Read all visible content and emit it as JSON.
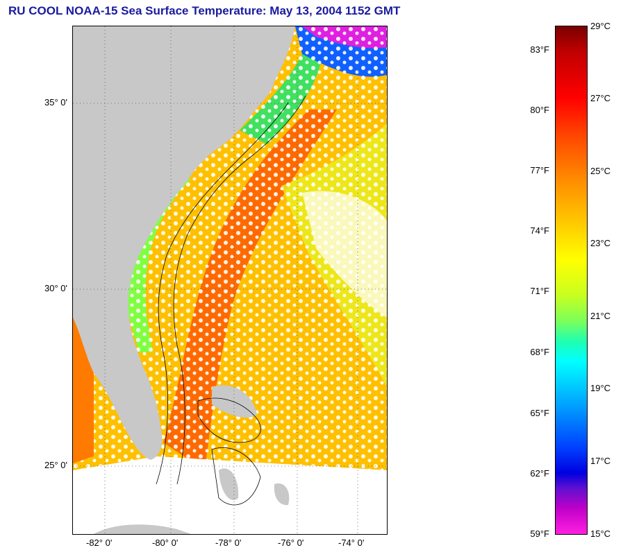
{
  "title": "RU COOL  NOAA-15  Sea Surface Temperature:  May 13, 2004 1152 GMT",
  "map": {
    "lat_labels": [
      "35° 0'",
      "30° 0'",
      "25° 0'"
    ],
    "lon_labels": [
      "-82° 0'",
      "-80° 0'",
      "-78° 0'",
      "-76° 0'",
      "-74° 0'"
    ],
    "land_color": "#c8c8c8",
    "cloud_color": "#ffffff"
  },
  "colorbar": {
    "fahrenheit_labels": [
      "83°F",
      "80°F",
      "77°F",
      "74°F",
      "71°F",
      "68°F",
      "65°F",
      "62°F",
      "59°F"
    ],
    "celsius_labels": [
      "29°C",
      "27°C",
      "25°C",
      "23°C",
      "21°C",
      "19°C",
      "17°C",
      "15°C"
    ]
  }
}
